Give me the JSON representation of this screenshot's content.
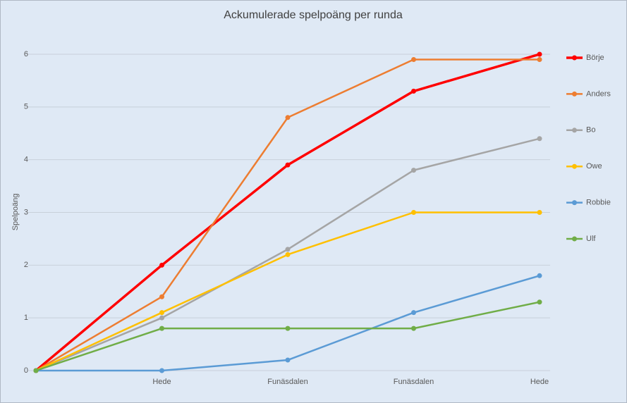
{
  "chart_data": {
    "type": "line",
    "title": "Ackumulerade spelpoäng per runda",
    "y_label": "Spelpoäng",
    "categories": [
      null,
      "Hede",
      "Funäsdalen",
      "Funäsdalen",
      "Hede"
    ],
    "series": [
      {
        "name": "Börje",
        "color": "#ff0000",
        "values": [
          0,
          2,
          3.9,
          5.3,
          6
        ]
      },
      {
        "name": "Anders",
        "color": "#ed7d31",
        "values": [
          0,
          1.4,
          4.8,
          5.9,
          5.9
        ]
      },
      {
        "name": "Bo",
        "color": "#a5a5a5",
        "values": [
          0,
          1,
          2.3,
          3.8,
          4.4
        ]
      },
      {
        "name": "Owe",
        "color": "#ffc000",
        "values": [
          0,
          1.1,
          2.2,
          3,
          3
        ]
      },
      {
        "name": "Robbie",
        "color": "#5b9bd5",
        "values": [
          0,
          0,
          0.2,
          1.1,
          1.8
        ]
      },
      {
        "name": "Ulf",
        "color": "#70ad47",
        "values": [
          0,
          0.8,
          0.8,
          0.8,
          1.3
        ]
      }
    ],
    "ylim": [
      0,
      6
    ],
    "yticks": [
      0,
      1,
      2,
      3,
      4,
      5,
      6
    ],
    "grid": true,
    "legend": "right"
  }
}
